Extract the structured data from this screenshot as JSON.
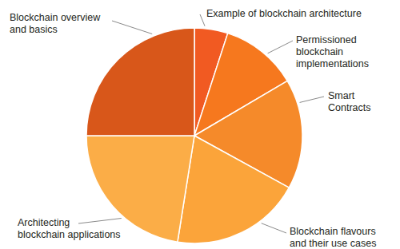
{
  "chart_data": {
    "type": "pie",
    "categories": [
      "Example of blockchain architecture",
      "Permissioned blockchain implementations",
      "Smart Contracts",
      "Blockchain flavours and their use cases",
      "Architecting blockchain applications",
      "Blockchain overview and basics"
    ],
    "values": [
      5,
      11.5,
      16.5,
      19.5,
      22.5,
      25
    ],
    "colors": [
      "#f15a22",
      "#f6781e",
      "#f58a2a",
      "#fba43a",
      "#fbad47",
      "#d8571a"
    ]
  }
}
